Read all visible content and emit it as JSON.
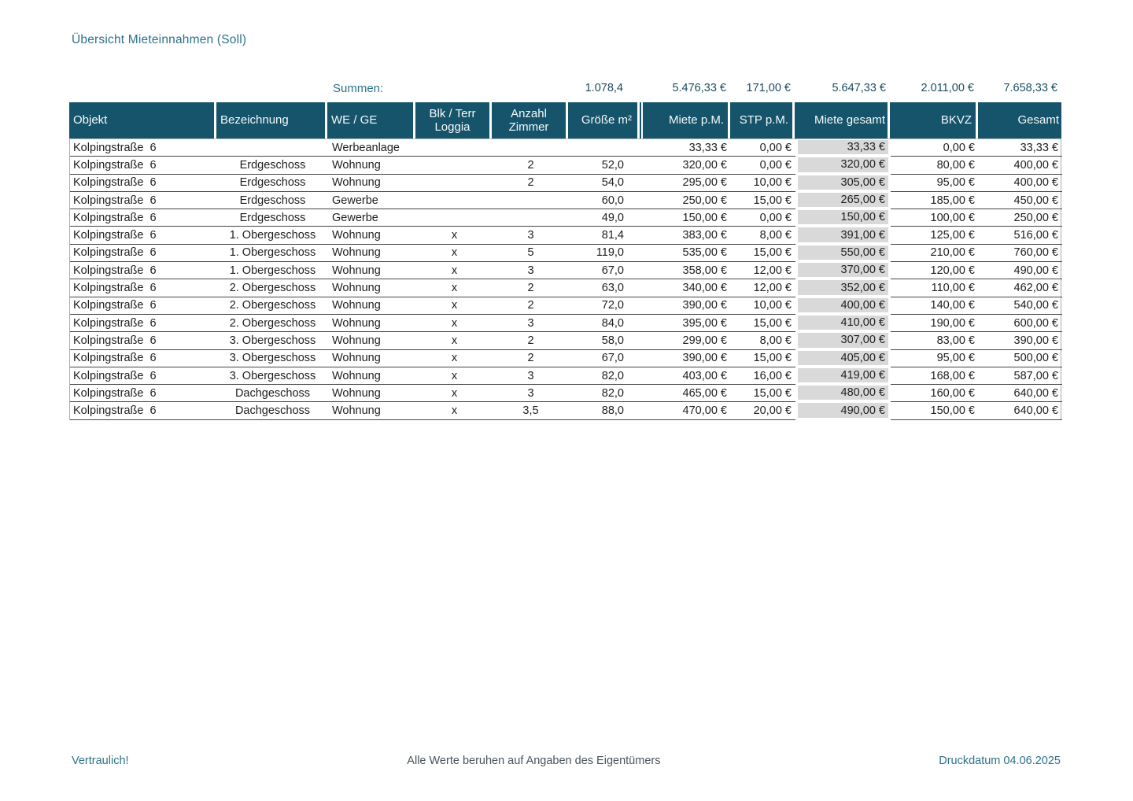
{
  "page": {
    "title": "Übersicht Mieteinnahmen (Soll)"
  },
  "colors": {
    "header_bg": "#15546b",
    "accent_teal": "#2d7189",
    "sum_text": "#1c4d61",
    "gray_col": "#d9d9d9",
    "row_border": "#454545",
    "page_bg": "#ffffff"
  },
  "sums": {
    "label": "Summen:",
    "groesse": "1.078,4",
    "miete_pm": "5.476,33 €",
    "stp_pm": "171,00 €",
    "miete_gesamt": "5.647,33 €",
    "bkvz": "2.011,00 €",
    "gesamt": "7.658,33 €"
  },
  "table": {
    "columns": [
      "Objekt",
      "Bezeichnung",
      "WE / GE",
      "Blk / Terr Loggia",
      "Anzahl Zimmer",
      "Größe m²",
      "Miete p.M.",
      "STP p.M.",
      "Miete gesamt",
      "BKVZ",
      "Gesamt"
    ],
    "rows": [
      [
        "Kolpingstraße  6",
        "",
        "Werbeanlage",
        "",
        "",
        "",
        "33,33 €",
        "0,00 €",
        "33,33 €",
        "0,00 €",
        "33,33 €"
      ],
      [
        "Kolpingstraße  6",
        "Erdgeschoss",
        "Wohnung",
        "",
        "2",
        "52,0",
        "320,00 €",
        "0,00 €",
        "320,00 €",
        "80,00 €",
        "400,00 €"
      ],
      [
        "Kolpingstraße  6",
        "Erdgeschoss",
        "Wohnung",
        "",
        "2",
        "54,0",
        "295,00 €",
        "10,00 €",
        "305,00 €",
        "95,00 €",
        "400,00 €"
      ],
      [
        "Kolpingstraße  6",
        "Erdgeschoss",
        "Gewerbe",
        "",
        "",
        "60,0",
        "250,00 €",
        "15,00 €",
        "265,00 €",
        "185,00 €",
        "450,00 €"
      ],
      [
        "Kolpingstraße  6",
        "Erdgeschoss",
        "Gewerbe",
        "",
        "",
        "49,0",
        "150,00 €",
        "0,00 €",
        "150,00 €",
        "100,00 €",
        "250,00 €"
      ],
      [
        "Kolpingstraße  6",
        "1.  Obergeschoss",
        "Wohnung",
        "x",
        "3",
        "81,4",
        "383,00 €",
        "8,00 €",
        "391,00 €",
        "125,00 €",
        "516,00 €"
      ],
      [
        "Kolpingstraße  6",
        "1.  Obergeschoss",
        "Wohnung",
        "x",
        "5",
        "119,0",
        "535,00 €",
        "15,00 €",
        "550,00 €",
        "210,00 €",
        "760,00 €"
      ],
      [
        "Kolpingstraße  6",
        "1.  Obergeschoss",
        "Wohnung",
        "x",
        "3",
        "67,0",
        "358,00 €",
        "12,00 €",
        "370,00 €",
        "120,00 €",
        "490,00 €"
      ],
      [
        "Kolpingstraße  6",
        "2.  Obergeschoss",
        "Wohnung",
        "x",
        "2",
        "63,0",
        "340,00 €",
        "12,00 €",
        "352,00 €",
        "110,00 €",
        "462,00 €"
      ],
      [
        "Kolpingstraße  6",
        "2.  Obergeschoss",
        "Wohnung",
        "x",
        "2",
        "72,0",
        "390,00 €",
        "10,00 €",
        "400,00 €",
        "140,00 €",
        "540,00 €"
      ],
      [
        "Kolpingstraße  6",
        "2.  Obergeschoss",
        "Wohnung",
        "x",
        "3",
        "84,0",
        "395,00 €",
        "15,00 €",
        "410,00 €",
        "190,00 €",
        "600,00 €"
      ],
      [
        "Kolpingstraße  6",
        "3.  Obergeschoss",
        "Wohnung",
        "x",
        "2",
        "58,0",
        "299,00 €",
        "8,00 €",
        "307,00 €",
        "83,00 €",
        "390,00 €"
      ],
      [
        "Kolpingstraße  6",
        "3.  Obergeschoss",
        "Wohnung",
        "x",
        "2",
        "67,0",
        "390,00 €",
        "15,00 €",
        "405,00 €",
        "95,00 €",
        "500,00 €"
      ],
      [
        "Kolpingstraße  6",
        "3.  Obergeschoss",
        "Wohnung",
        "x",
        "3",
        "82,0",
        "403,00 €",
        "16,00 €",
        "419,00 €",
        "168,00 €",
        "587,00 €"
      ],
      [
        "Kolpingstraße  6",
        "Dachgeschoss",
        "Wohnung",
        "x",
        "3",
        "82,0",
        "465,00 €",
        "15,00 €",
        "480,00 €",
        "160,00 €",
        "640,00 €"
      ],
      [
        "Kolpingstraße  6",
        "Dachgeschoss",
        "Wohnung",
        "x",
        "3,5",
        "88,0",
        "470,00 €",
        "20,00 €",
        "490,00 €",
        "150,00 €",
        "640,00 €"
      ]
    ]
  },
  "footer": {
    "left": "Vertraulich!",
    "center": "Alle Werte beruhen auf Angaben des Eigentümers",
    "right": "Druckdatum 04.06.2025"
  }
}
